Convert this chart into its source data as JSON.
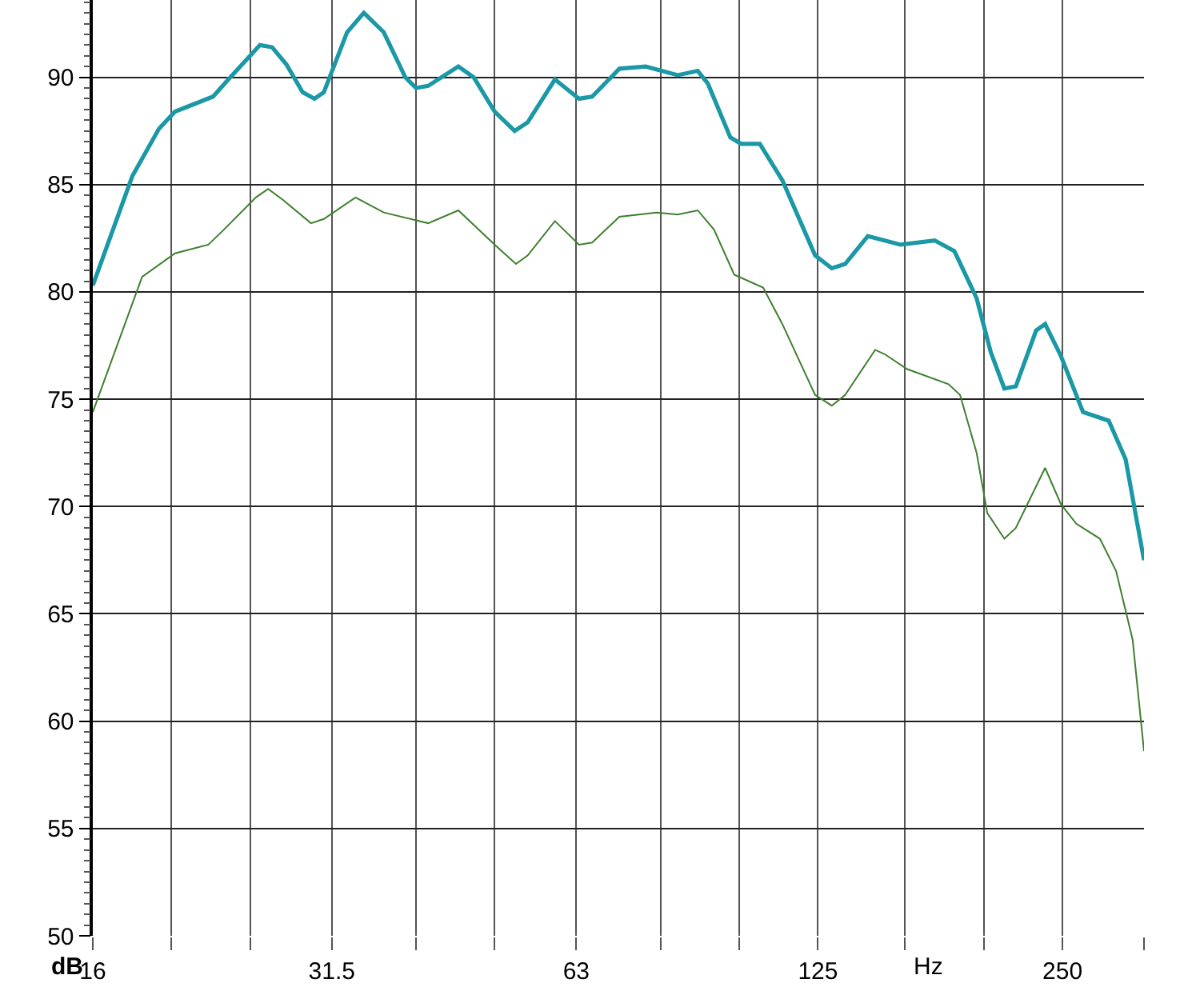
{
  "chart_data": {
    "type": "line",
    "xlabel": "Hz",
    "ylabel": "dB",
    "log": "x",
    "grid": true,
    "marker": "none",
    "line_style": "solid",
    "xlim": [
      16,
      315
    ],
    "ylim": [
      50,
      93.6
    ],
    "xticks": [
      16,
      {
        "value": 20,
        "label": null
      },
      {
        "value": 25,
        "label": null
      },
      31.5,
      {
        "value": 40,
        "label": null
      },
      {
        "value": 50,
        "label": null
      },
      63,
      {
        "value": 80,
        "label": null
      },
      {
        "value": 100,
        "label": null
      },
      125,
      {
        "value": 160,
        "label": null
      },
      {
        "value": 200,
        "label": null
      },
      250,
      {
        "value": 315,
        "label": null
      }
    ],
    "yticks": [
      50,
      55,
      60,
      65,
      70,
      75,
      80,
      85,
      90
    ],
    "series": [
      {
        "color": "#1b98a6",
        "x": [
          16,
          17.9,
          19.3,
          20.2,
          22.5,
          23.5,
          25.7,
          26.6,
          27.7,
          29.0,
          30.0,
          30.8,
          32.9,
          34.5,
          36.5,
          38.8,
          40.0,
          41.4,
          45.1,
          47.1,
          50.0,
          52.9,
          54.9,
          59.3,
          63.5,
          65.9,
          71.2,
          76.7,
          84.0,
          88.9,
          91.5,
          97.5,
          100.5,
          106,
          113,
          124,
          130,
          135,
          144,
          158,
          174,
          184,
          196,
          204,
          212,
          219,
          232,
          238,
          249,
          265,
          285,
          299,
          315
        ],
        "values": [
          80.3,
          85.4,
          87.6,
          88.4,
          89.1,
          89.9,
          91.5,
          91.4,
          90.6,
          89.3,
          89.0,
          89.3,
          92.1,
          93.0,
          92.1,
          90.0,
          89.5,
          89.6,
          90.5,
          90.0,
          88.4,
          87.5,
          87.9,
          89.9,
          89.0,
          89.1,
          90.4,
          90.5,
          90.1,
          90.3,
          89.7,
          87.2,
          86.9,
          86.9,
          85.2,
          81.7,
          81.1,
          81.3,
          82.6,
          82.2,
          82.4,
          81.9,
          79.7,
          77.2,
          75.5,
          75.6,
          78.2,
          78.5,
          77.0,
          74.4,
          74.0,
          72.2,
          67.5
        ]
      },
      {
        "color": "#3f7f2f",
        "x": [
          16,
          18.4,
          20.2,
          22.2,
          23.2,
          25.4,
          26.3,
          27.4,
          29.7,
          30.8,
          33.7,
          36.5,
          41.4,
          45.1,
          50.0,
          53.1,
          54.9,
          59.3,
          63.5,
          65.9,
          71.2,
          79.1,
          84.0,
          88.9,
          93.1,
          98.6,
          107,
          113,
          124,
          130,
          135,
          147,
          151,
          161,
          181,
          187,
          196,
          202,
          212,
          219,
          238,
          249,
          260,
          278,
          291,
          305,
          315
        ],
        "values": [
          74.4,
          80.7,
          81.8,
          82.2,
          82.9,
          84.4,
          84.8,
          84.3,
          83.2,
          83.4,
          84.4,
          83.7,
          83.2,
          83.8,
          82.2,
          81.3,
          81.7,
          83.3,
          82.2,
          82.3,
          83.5,
          83.7,
          83.6,
          83.8,
          82.9,
          80.8,
          80.2,
          78.5,
          75.2,
          74.7,
          75.2,
          77.3,
          77.1,
          76.4,
          75.7,
          75.2,
          72.5,
          69.7,
          68.5,
          69.0,
          71.8,
          70.1,
          69.2,
          68.5,
          67.0,
          63.8,
          58.6
        ]
      }
    ]
  }
}
